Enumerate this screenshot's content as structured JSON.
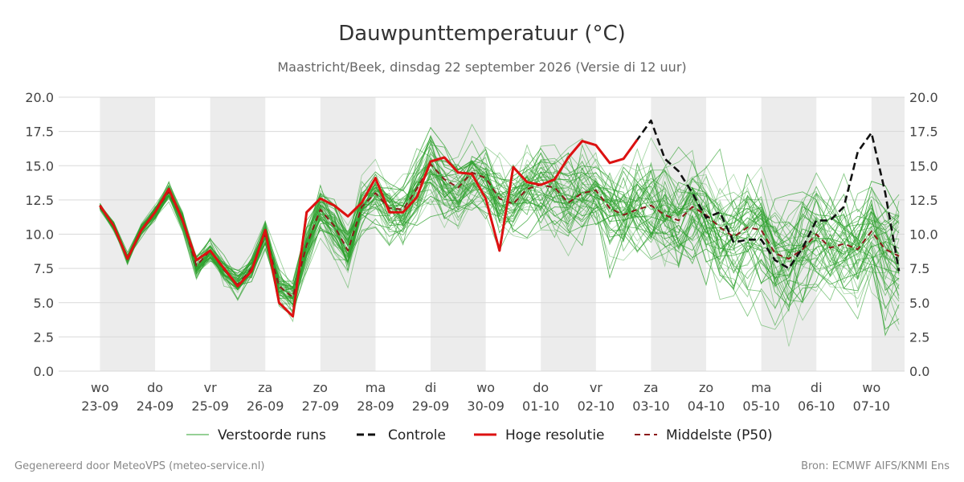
{
  "chart_data": {
    "type": "line",
    "title": "Dauwpunttemperatuur (°C)",
    "subtitle": "Maastricht/Beek, dinsdag 22 september 2026 (Versie di 12 uur)",
    "ylim": [
      0,
      20
    ],
    "y_ticks": [
      "0.0",
      "2.5",
      "5.0",
      "7.5",
      "10.0",
      "12.5",
      "15.0",
      "17.5",
      "20.0"
    ],
    "x_range_days": [
      -0.75,
      14.6
    ],
    "day_ticks": [
      {
        "day": "wo",
        "date": "23-09"
      },
      {
        "day": "do",
        "date": "24-09"
      },
      {
        "day": "vr",
        "date": "25-09"
      },
      {
        "day": "za",
        "date": "26-09"
      },
      {
        "day": "zo",
        "date": "27-09"
      },
      {
        "day": "ma",
        "date": "28-09"
      },
      {
        "day": "di",
        "date": "29-09"
      },
      {
        "day": "wo",
        "date": "30-09"
      },
      {
        "day": "do",
        "date": "01-10"
      },
      {
        "day": "vr",
        "date": "02-10"
      },
      {
        "day": "za",
        "date": "03-10"
      },
      {
        "day": "zo",
        "date": "04-10"
      },
      {
        "day": "ma",
        "date": "05-10"
      },
      {
        "day": "di",
        "date": "06-10"
      },
      {
        "day": "wo",
        "date": "07-10"
      }
    ],
    "shaded_days": [
      0,
      2,
      4,
      6,
      8,
      10,
      12,
      14
    ],
    "grid": true,
    "legend_position": "bottom",
    "ensemble": {
      "name": "Verstoorde runs",
      "color": "#2ca02c",
      "members": 50,
      "step_days": 0.25
    },
    "series": [
      {
        "name": "Controle",
        "color": "#111111",
        "style": "dashed",
        "x": [
          0,
          0.25,
          0.5,
          0.75,
          1,
          1.25,
          1.5,
          1.75,
          2,
          2.25,
          2.5,
          2.75,
          3,
          3.25,
          3.5,
          3.75,
          4,
          4.25,
          4.5,
          4.75,
          5,
          5.25,
          5.5,
          5.75,
          6,
          6.25,
          6.5,
          6.75,
          7,
          7.25,
          7.5,
          7.75,
          8,
          8.25,
          8.5,
          8.75,
          9,
          9.25,
          9.5,
          9.75,
          10,
          10.25,
          10.5,
          10.75,
          11,
          11.25,
          11.5,
          11.75,
          12,
          12.25,
          12.5,
          12.75,
          13,
          13.25,
          13.5,
          13.75,
          14,
          14.25,
          14.5
        ],
        "values": [
          12.1,
          10.6,
          8.2,
          10.3,
          11.6,
          13.3,
          11.0,
          8.1,
          8.8,
          7.5,
          6.2,
          7.3,
          10.3,
          5.0,
          4.0,
          11.6,
          12.6,
          12.1,
          11.3,
          12.3,
          14.1,
          11.6,
          11.6,
          12.7,
          15.3,
          15.6,
          14.5,
          14.4,
          12.6,
          8.8,
          14.9,
          13.8,
          13.6,
          14.0,
          15.6,
          16.8,
          16.5,
          15.2,
          15.5,
          16.9,
          18.3,
          15.5,
          14.6,
          13.0,
          11.2,
          11.6,
          9.4,
          9.6,
          9.6,
          8.1,
          7.5,
          9.0,
          11.0,
          11.0,
          12.0,
          16.0,
          17.4,
          13.0,
          7.3
        ]
      },
      {
        "name": "Hoge resolutie",
        "color": "#dd1111",
        "style": "solid",
        "x": [
          0,
          0.25,
          0.5,
          0.75,
          1,
          1.25,
          1.5,
          1.75,
          2,
          2.25,
          2.5,
          2.75,
          3,
          3.25,
          3.5,
          3.75,
          4,
          4.25,
          4.5,
          4.75,
          5,
          5.25,
          5.5,
          5.75,
          6,
          6.25,
          6.5,
          6.75,
          7,
          7.25,
          7.5,
          7.75,
          8,
          8.25,
          8.5,
          8.75,
          9,
          9.25,
          9.5,
          9.75
        ],
        "values": [
          12.1,
          10.6,
          8.2,
          10.3,
          11.6,
          13.3,
          11.0,
          8.1,
          8.8,
          7.5,
          6.2,
          7.3,
          10.3,
          5.0,
          4.0,
          11.6,
          12.6,
          12.1,
          11.3,
          12.3,
          14.1,
          11.6,
          11.6,
          12.7,
          15.3,
          15.6,
          14.5,
          14.4,
          12.6,
          8.8,
          14.9,
          13.8,
          13.6,
          14.0,
          15.6,
          16.8,
          16.5,
          15.2,
          15.5,
          16.9
        ]
      },
      {
        "name": "Middelste (P50)",
        "color": "#8b1a1a",
        "style": "dashed",
        "x": [
          0,
          0.25,
          0.5,
          0.75,
          1,
          1.25,
          1.5,
          1.75,
          2,
          2.25,
          2.5,
          2.75,
          3,
          3.25,
          3.5,
          3.75,
          4,
          4.25,
          4.5,
          4.75,
          5,
          5.25,
          5.5,
          5.75,
          6,
          6.25,
          6.5,
          6.75,
          7,
          7.25,
          7.5,
          7.75,
          8,
          8.25,
          8.5,
          8.75,
          9,
          9.25,
          9.5,
          9.75,
          10,
          10.25,
          10.5,
          10.75,
          11,
          11.25,
          11.5,
          11.75,
          12,
          12.25,
          12.5,
          12.75,
          13,
          13.25,
          13.5,
          13.75,
          14,
          14.25,
          14.5
        ],
        "values": [
          12.0,
          10.6,
          8.2,
          10.3,
          11.6,
          13.1,
          11.0,
          7.7,
          8.8,
          7.4,
          6.3,
          7.5,
          10.0,
          6.2,
          5.4,
          9.2,
          11.8,
          10.6,
          8.8,
          12.0,
          13.0,
          11.9,
          11.8,
          13.3,
          15.1,
          14.0,
          13.4,
          14.5,
          14.1,
          12.6,
          12.2,
          13.3,
          13.6,
          13.4,
          12.3,
          13.0,
          13.2,
          11.9,
          11.4,
          11.8,
          12.1,
          11.4,
          11.0,
          12.0,
          11.4,
          10.5,
          9.8,
          10.5,
          10.3,
          8.6,
          8.2,
          8.9,
          10.0,
          9.0,
          9.3,
          8.9,
          10.2,
          8.9,
          8.4
        ]
      }
    ],
    "legend": [
      "Verstoorde runs",
      "Controle",
      "Hoge resolutie",
      "Middelste (P50)"
    ]
  },
  "footer": {
    "left": "Gegenereerd door MeteoVPS (meteo-service.nl)",
    "right": "Bron: ECMWF AIFS/KNMI Ens"
  },
  "colors": {
    "shade": "#ececec",
    "grid": "#d9d9d9"
  }
}
